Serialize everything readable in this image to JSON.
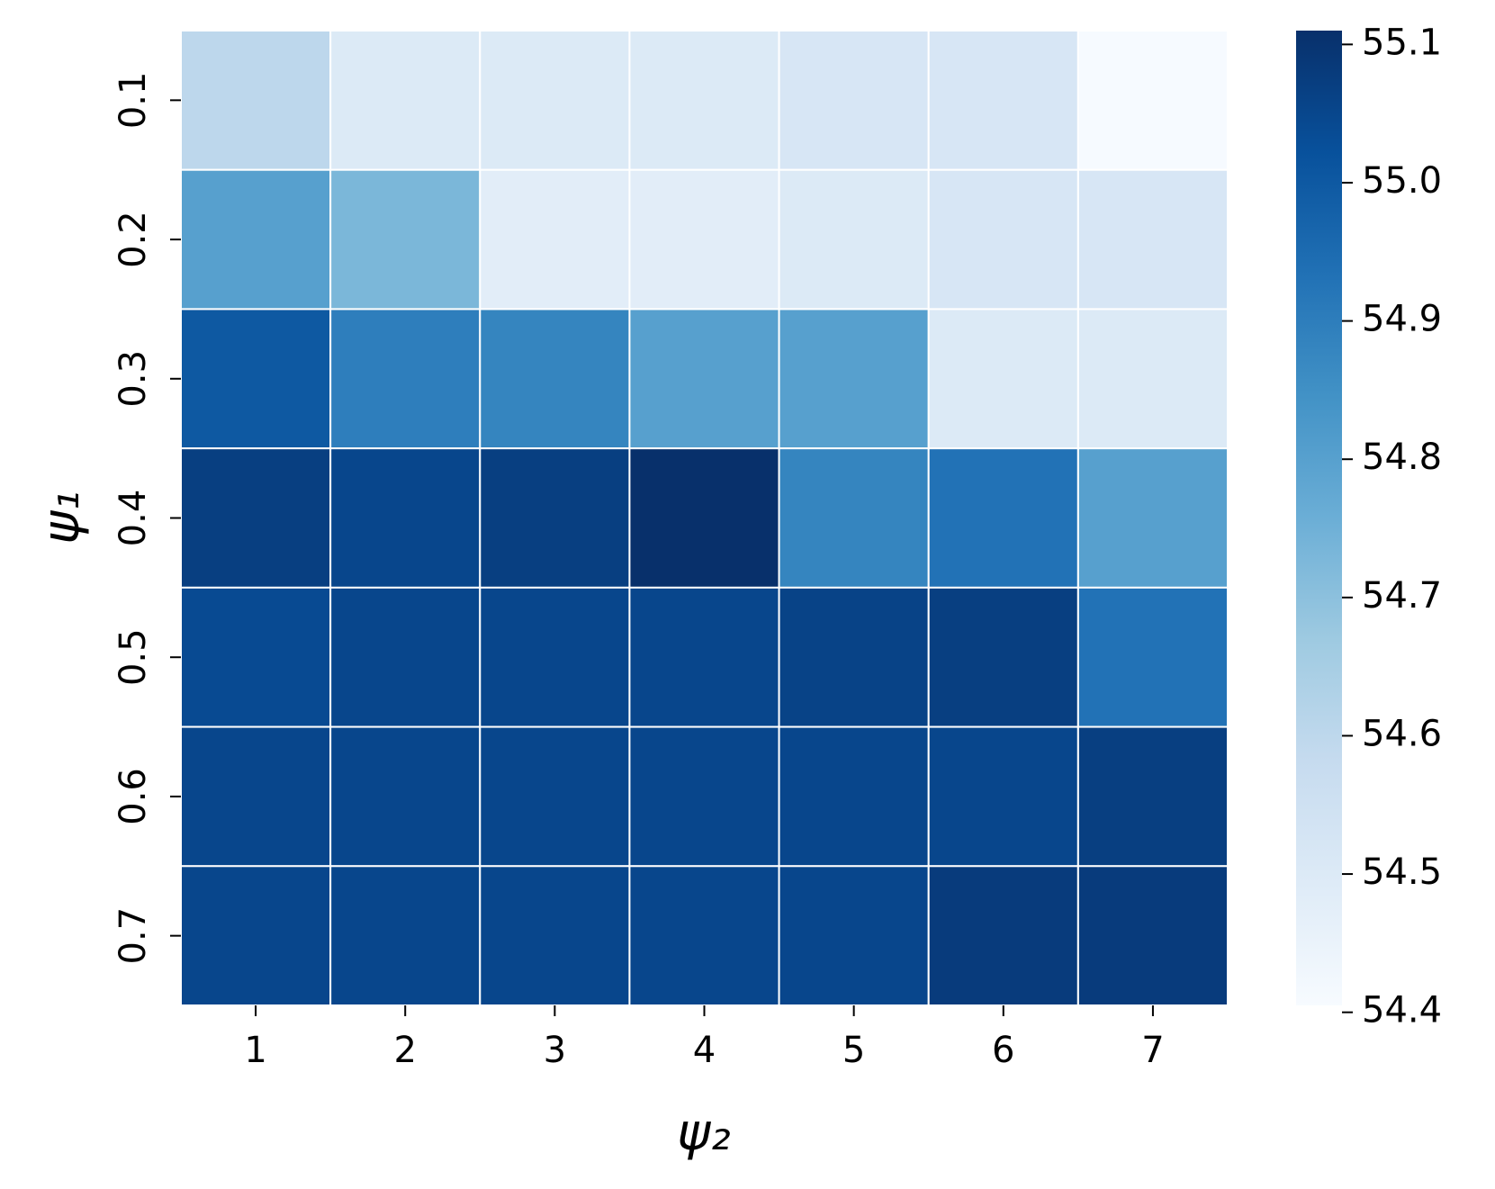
{
  "chart_data": {
    "type": "heatmap",
    "x_label": "ψ₂",
    "y_label": "ψ₁",
    "x_categories": [
      "1",
      "2",
      "3",
      "4",
      "5",
      "6",
      "7"
    ],
    "y_categories": [
      "0.1",
      "0.2",
      "0.3",
      "0.4",
      "0.5",
      "0.6",
      "0.7"
    ],
    "values": [
      [
        54.6,
        54.5,
        54.5,
        54.5,
        54.52,
        54.52,
        54.41
      ],
      [
        54.8,
        54.73,
        54.48,
        54.48,
        54.5,
        54.52,
        54.52
      ],
      [
        55.0,
        54.9,
        54.88,
        54.8,
        54.8,
        54.5,
        54.5
      ],
      [
        55.07,
        55.05,
        55.07,
        55.11,
        54.88,
        54.93,
        54.8
      ],
      [
        55.04,
        55.05,
        55.05,
        55.05,
        55.06,
        55.07,
        54.93
      ],
      [
        55.05,
        55.05,
        55.05,
        55.05,
        55.05,
        55.05,
        55.07
      ],
      [
        55.05,
        55.05,
        55.05,
        55.05,
        55.05,
        55.08,
        55.08
      ]
    ],
    "colormap": [
      "#f7fbff",
      "#deebf7",
      "#c6dbef",
      "#9ecae1",
      "#6baed6",
      "#4292c6",
      "#2171b5",
      "#08519c",
      "#08306b"
    ],
    "clim": [
      54.405,
      55.11
    ],
    "cticks": [
      54.4,
      54.5,
      54.6,
      54.7,
      54.8,
      54.9,
      {
        "value": 55.0,
        "label": "55.0"
      },
      55.1
    ]
  }
}
